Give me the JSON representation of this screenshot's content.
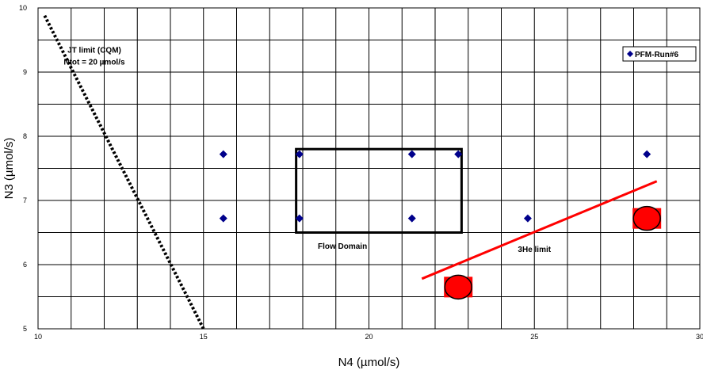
{
  "chart_data": {
    "type": "scatter",
    "xlabel": "N4 (µmol/s)",
    "ylabel": "N3 (µmol/s)",
    "xlim": [
      10,
      30
    ],
    "ylim": [
      5,
      10
    ],
    "x_ticks": [
      "10",
      "15",
      "20",
      "25",
      "30"
    ],
    "y_ticks": [
      "5",
      "6",
      "7",
      "8",
      "9",
      "10"
    ],
    "x_grid_step": 1,
    "y_grid_step": 0.5,
    "grid": true,
    "legend": {
      "position": "top-right",
      "entries": [
        "PFM-Run#6"
      ]
    },
    "series": [
      {
        "name": "PFM-Run#6",
        "marker": "diamond",
        "color": "#00008B",
        "points": [
          {
            "x": 15.6,
            "y": 7.72
          },
          {
            "x": 17.9,
            "y": 7.72
          },
          {
            "x": 21.3,
            "y": 7.72
          },
          {
            "x": 22.7,
            "y": 7.72
          },
          {
            "x": 28.4,
            "y": 7.72
          },
          {
            "x": 15.6,
            "y": 6.72
          },
          {
            "x": 17.9,
            "y": 6.72
          },
          {
            "x": 21.3,
            "y": 6.72
          },
          {
            "x": 24.8,
            "y": 6.72
          }
        ]
      },
      {
        "marker": "red-circle-on-square",
        "color": "#FF0000",
        "points": [
          {
            "x": 22.7,
            "y": 5.65
          },
          {
            "x": 28.4,
            "y": 6.72
          }
        ]
      }
    ],
    "lines": [
      {
        "style": "dotted",
        "color": "#000000",
        "points": [
          [
            10.2,
            9.88
          ],
          [
            15.0,
            5.0
          ]
        ]
      },
      {
        "style": "solid",
        "color": "#FF0000",
        "points": [
          [
            21.6,
            5.78
          ],
          [
            28.7,
            7.3
          ]
        ]
      }
    ],
    "boxes": [
      {
        "x": [
          17.8,
          22.8
        ],
        "y": [
          6.5,
          7.8
        ],
        "color": "#000000"
      }
    ],
    "annotations": [
      {
        "lines": [
          "JT limit (CQM)",
          "Ntot = 20 µmol/s"
        ],
        "x": 11.7,
        "y": 9.3
      },
      {
        "lines": [
          "Flow Domain"
        ],
        "x": 19.2,
        "y": 6.25
      },
      {
        "lines": [
          "3He limit"
        ],
        "x": 25.0,
        "y": 6.2
      }
    ]
  }
}
